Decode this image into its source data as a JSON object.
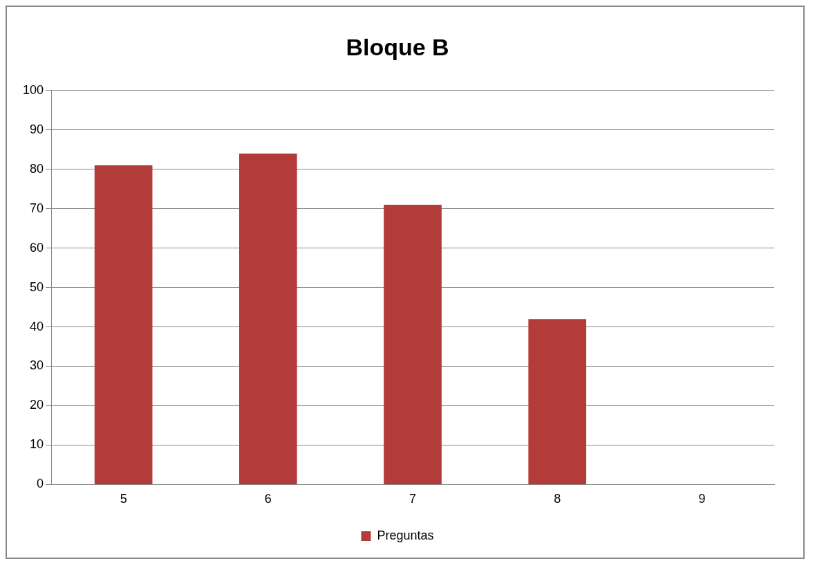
{
  "chart_data": {
    "type": "bar",
    "title": "Bloque B",
    "categories": [
      "5",
      "6",
      "7",
      "8",
      "9"
    ],
    "series": [
      {
        "name": "Preguntas",
        "color": "#b33c3a",
        "values": [
          81,
          84,
          71,
          42,
          0
        ]
      }
    ],
    "ylim": [
      0,
      100
    ],
    "yticks": [
      0,
      10,
      20,
      30,
      40,
      50,
      60,
      70,
      80,
      90,
      100
    ],
    "grid": "y",
    "legend": "bottom"
  }
}
